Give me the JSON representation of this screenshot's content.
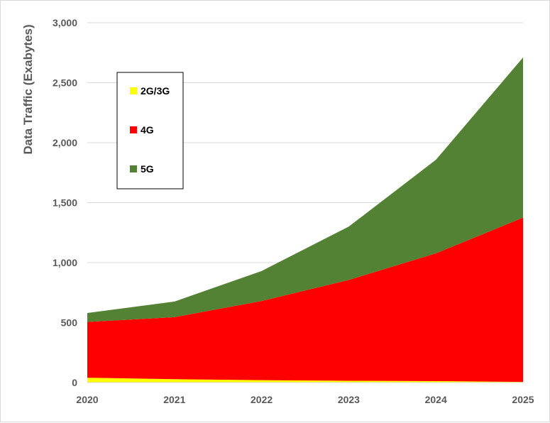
{
  "chart_data": {
    "type": "area",
    "stacked": true,
    "x": [
      "2020",
      "2021",
      "2022",
      "2023",
      "2024",
      "2025"
    ],
    "series": [
      {
        "name": "2G/3G",
        "values": [
          40,
          28,
          20,
          15,
          12,
          5
        ],
        "color": "#ffff00"
      },
      {
        "name": "4G",
        "values": [
          465,
          517,
          660,
          840,
          1065,
          1370
        ],
        "color": "#ff0000"
      },
      {
        "name": "5G",
        "values": [
          75,
          130,
          250,
          445,
          780,
          1335
        ],
        "color": "#548235"
      }
    ],
    "ylabel": "Data Traffic (Exabytes)",
    "ylim": [
      0,
      3000
    ],
    "yticks": [
      0,
      500,
      1000,
      1500,
      2000,
      2500,
      3000
    ],
    "ytick_labels": [
      "0",
      "500",
      "1,000",
      "1,500",
      "2,000",
      "2,500",
      "3,000"
    ],
    "grid": "horizontal",
    "legend_position": "top-left inside"
  }
}
